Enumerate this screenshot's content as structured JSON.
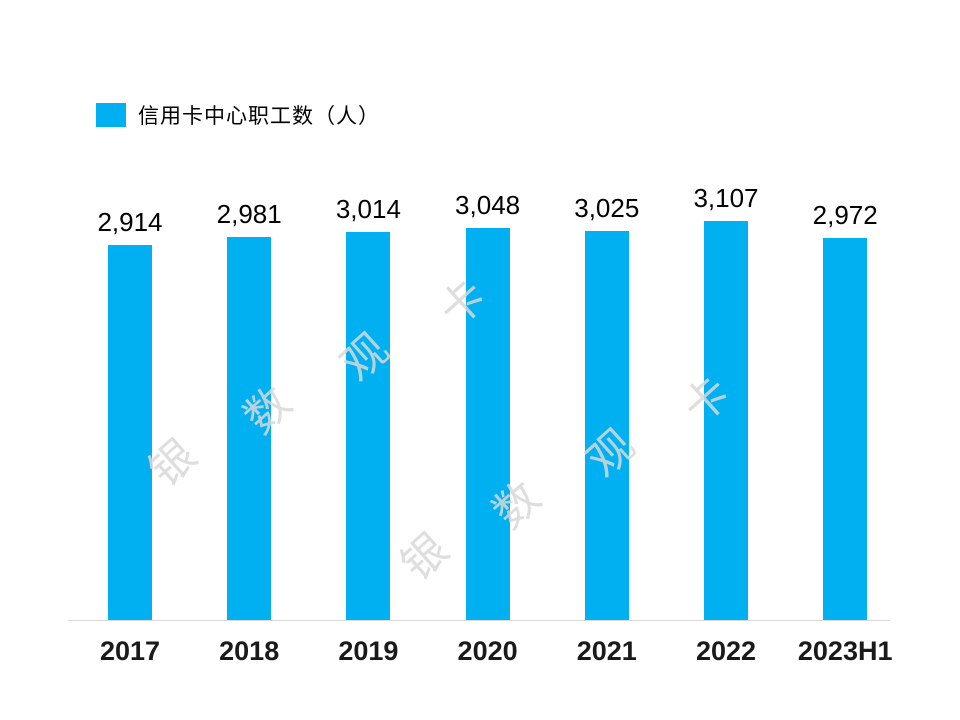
{
  "legend": {
    "label": "信用卡中心职工数（人）",
    "color": "#00B0F0"
  },
  "watermark": {
    "text": "银数观卡"
  },
  "chart_data": {
    "type": "bar",
    "title": "",
    "xlabel": "",
    "ylabel": "",
    "series_name": "信用卡中心职工数（人）",
    "categories": [
      "2017",
      "2018",
      "2019",
      "2020",
      "2021",
      "2022",
      "2023H1"
    ],
    "values": [
      2914,
      2981,
      3014,
      3048,
      3025,
      3107,
      2972
    ],
    "data_labels": [
      "2,914",
      "2,981",
      "3,014",
      "3,048",
      "3,025",
      "3,107",
      "2,972"
    ],
    "ylim": [
      0,
      3500
    ],
    "bar_color": "#00B0F0",
    "grid": false,
    "legend_position": "top-left"
  }
}
